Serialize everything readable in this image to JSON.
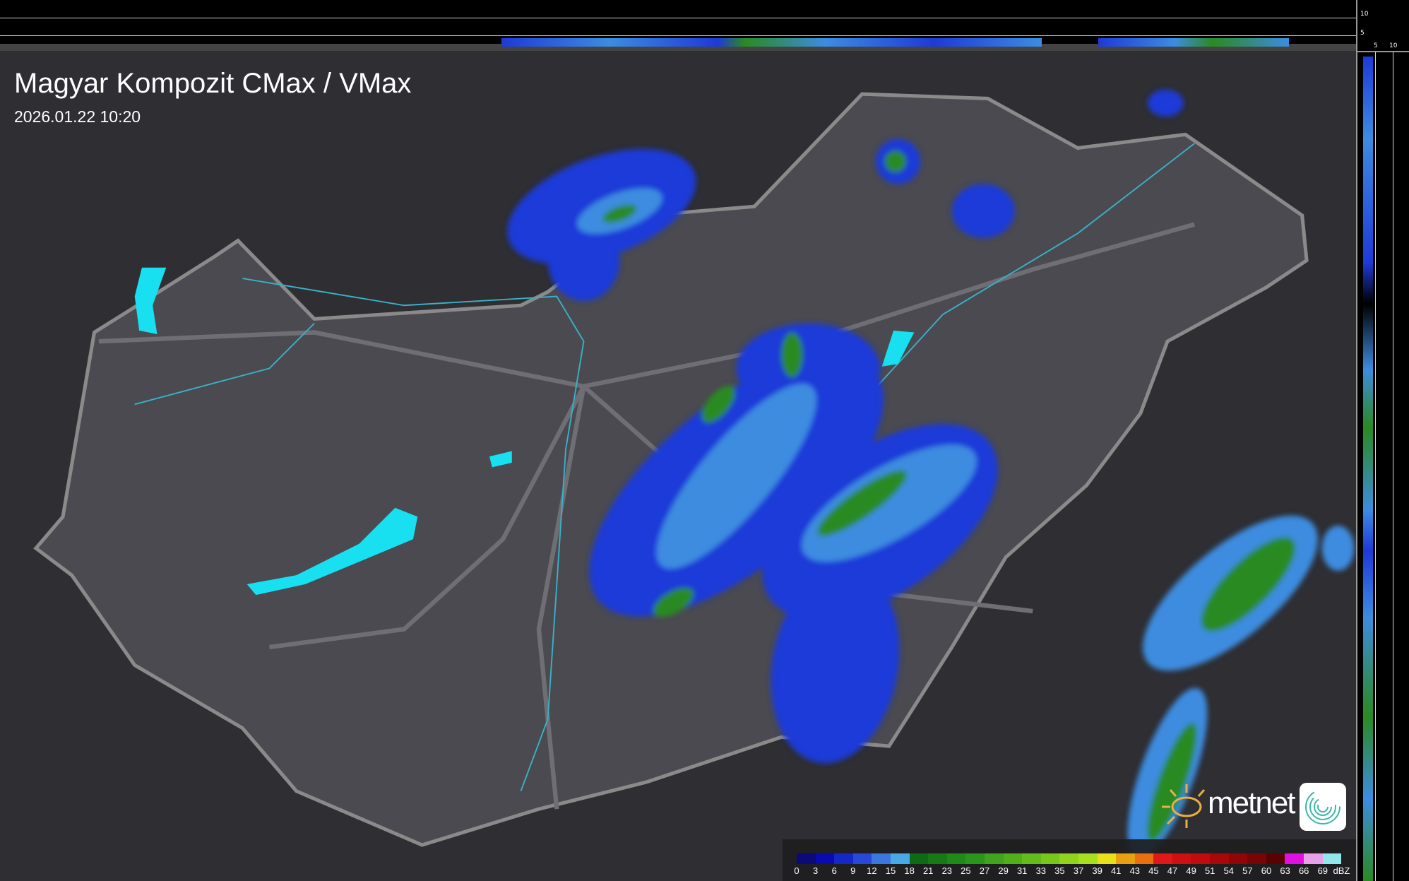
{
  "title": "Magyar Kompozit CMax / VMax",
  "timestamp": "2026.01.22 10:20",
  "logo": {
    "text": "metnet"
  },
  "profile_axes": {
    "vertical_ticks": [
      "10",
      "5"
    ],
    "horizontal_ticks": [
      "5",
      "10"
    ]
  },
  "legend": {
    "unit": "dBZ",
    "labels": [
      "0",
      "3",
      "6",
      "9",
      "12",
      "15",
      "18",
      "21",
      "23",
      "25",
      "27",
      "29",
      "31",
      "33",
      "35",
      "37",
      "39",
      "41",
      "43",
      "45",
      "47",
      "49",
      "51",
      "54",
      "57",
      "60",
      "63",
      "66",
      "69"
    ],
    "colors": [
      "#0a0a7a",
      "#0a0ab0",
      "#1428c8",
      "#2848d8",
      "#3a78e0",
      "#48a8e8",
      "#0f6a14",
      "#187a14",
      "#208a18",
      "#2a961c",
      "#40a41c",
      "#50b01c",
      "#64bc1c",
      "#78c81c",
      "#90d41c",
      "#a8e020",
      "#e8e018",
      "#e8a010",
      "#e87010",
      "#e01818",
      "#d01010",
      "#c00c0c",
      "#a80808",
      "#900606",
      "#780404",
      "#580202",
      "#e010e0",
      "#e8a0e8",
      "#90e8e8"
    ]
  },
  "colors": {
    "background": "#2e2e33",
    "country": "#4a4a50",
    "border": "#8a8a8a",
    "river": "#3ab0c8",
    "lake": "#18e0f0",
    "radar_weak": "#1e3ad8",
    "radar_mid": "#3c8ce0",
    "radar_strong": "#2a8a20"
  }
}
